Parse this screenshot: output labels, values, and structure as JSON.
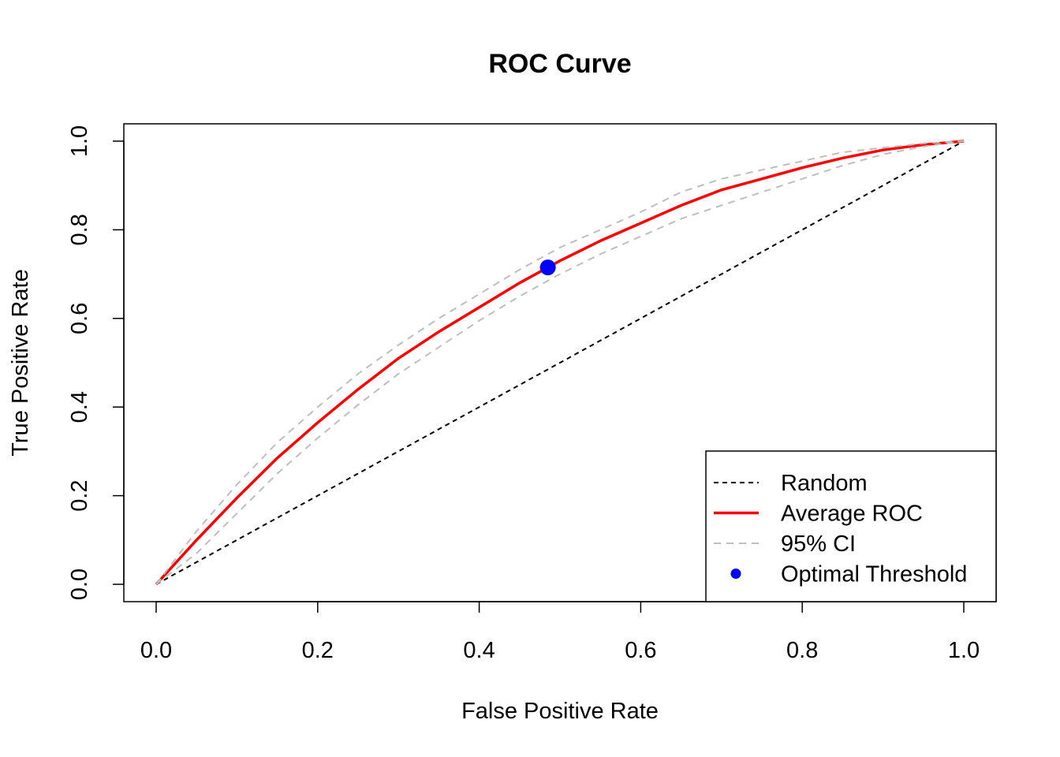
{
  "chart_data": {
    "type": "line",
    "title": "ROC Curve",
    "xlabel": "False Positive Rate",
    "ylabel": "True Positive Rate",
    "xlim": [
      0,
      1
    ],
    "ylim": [
      0,
      1
    ],
    "xticks": [
      "0.0",
      "0.2",
      "0.4",
      "0.6",
      "0.8",
      "1.0"
    ],
    "yticks": [
      "0.0",
      "0.2",
      "0.4",
      "0.6",
      "0.8",
      "1.0"
    ],
    "grid": false,
    "legend_position": "bottom-right",
    "series": [
      {
        "name": "Random",
        "style": "dashed",
        "color": "#000000",
        "x": [
          0,
          1
        ],
        "y": [
          0,
          1
        ]
      },
      {
        "name": "Average ROC",
        "style": "solid",
        "color": "#ff0000",
        "x": [
          0,
          0.05,
          0.1,
          0.15,
          0.2,
          0.25,
          0.3,
          0.35,
          0.4,
          0.45,
          0.5,
          0.55,
          0.6,
          0.65,
          0.7,
          0.75,
          0.8,
          0.85,
          0.9,
          0.95,
          1.0
        ],
        "y": [
          0,
          0.1,
          0.195,
          0.285,
          0.365,
          0.44,
          0.51,
          0.57,
          0.625,
          0.68,
          0.73,
          0.775,
          0.815,
          0.855,
          0.89,
          0.915,
          0.94,
          0.962,
          0.98,
          0.992,
          1.0
        ]
      },
      {
        "name": "95% CI",
        "style": "dashed",
        "color": "#bebebe",
        "x": [
          0,
          0.05,
          0.1,
          0.15,
          0.2,
          0.25,
          0.3,
          0.35,
          0.4,
          0.45,
          0.5,
          0.55,
          0.6,
          0.65,
          0.7,
          0.75,
          0.8,
          0.85,
          0.9,
          0.95,
          1.0
        ],
        "y": [
          0,
          0.12,
          0.225,
          0.32,
          0.4,
          0.475,
          0.54,
          0.6,
          0.655,
          0.71,
          0.76,
          0.8,
          0.84,
          0.885,
          0.915,
          0.935,
          0.955,
          0.975,
          0.985,
          0.995,
          1.0
        ]
      },
      {
        "name": "",
        "style": "dashed",
        "color": "#bebebe",
        "x": [
          0,
          0.05,
          0.1,
          0.15,
          0.2,
          0.25,
          0.3,
          0.35,
          0.4,
          0.45,
          0.5,
          0.55,
          0.6,
          0.65,
          0.7,
          0.75,
          0.8,
          0.85,
          0.9,
          0.95,
          1.0
        ],
        "y": [
          0,
          0.07,
          0.16,
          0.25,
          0.33,
          0.405,
          0.475,
          0.535,
          0.595,
          0.65,
          0.7,
          0.745,
          0.785,
          0.825,
          0.855,
          0.885,
          0.915,
          0.945,
          0.97,
          0.988,
          1.0
        ]
      }
    ],
    "optimal_threshold": {
      "name": "Optimal Threshold",
      "color": "#0000ff",
      "x": 0.485,
      "y": 0.715
    },
    "legend": [
      {
        "label": "Random",
        "kind": "line",
        "style": "dashed",
        "color": "#000000"
      },
      {
        "label": "Average ROC",
        "kind": "line",
        "style": "solid",
        "color": "#ff0000"
      },
      {
        "label": "95% CI",
        "kind": "line",
        "style": "dashed",
        "color": "#bebebe"
      },
      {
        "label": "Optimal Threshold",
        "kind": "point",
        "color": "#0000ff"
      }
    ]
  }
}
